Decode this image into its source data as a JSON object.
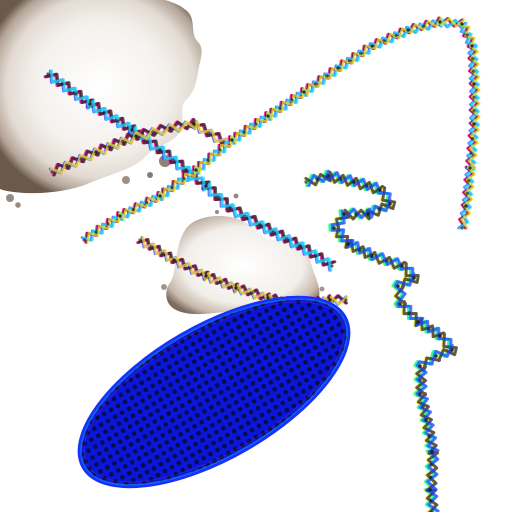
{
  "image": {
    "width": 512,
    "height": 512,
    "background": "#ffffff"
  },
  "colors": {
    "splash_light": "#fbfaf8",
    "splash_mid": "#efeae5",
    "splash_edge": "#a99a8d",
    "splash_rim": "#6b5a4c",
    "ellipse_fill": "#0a16d8",
    "ellipse_dots": "#050a3a",
    "stroke_pink": "#ff2aa8",
    "stroke_blue": "#2a3cff",
    "stroke_dark": "#1b1b1b",
    "stroke_green": "#35ff5a",
    "stroke_cyan": "#18e9ff",
    "stroke_yellow": "#ffe629",
    "stroke_purple": "#7b2cff"
  },
  "elements": [
    {
      "name": "paint-splash-large",
      "kind": "splash"
    },
    {
      "name": "paint-splash-small",
      "kind": "splash"
    },
    {
      "name": "blue-dotted-ellipse",
      "kind": "ellipse"
    },
    {
      "name": "zigzag-stroke-cross-a",
      "kind": "zigzag"
    },
    {
      "name": "zigzag-stroke-cross-b",
      "kind": "zigzag"
    },
    {
      "name": "zigzag-stroke-long-curve",
      "kind": "zigzag"
    },
    {
      "name": "zigzag-stroke-middle",
      "kind": "zigzag"
    },
    {
      "name": "zigzag-stroke-green-right",
      "kind": "zigzag"
    }
  ]
}
